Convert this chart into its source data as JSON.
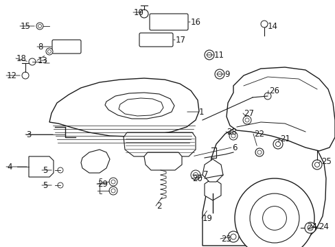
{
  "bg_color": "#ffffff",
  "line_color": "#1a1a1a",
  "fig_width": 4.89,
  "fig_height": 3.6,
  "dpi": 100,
  "font_size": 8.5,
  "font_size_small": 7.0
}
